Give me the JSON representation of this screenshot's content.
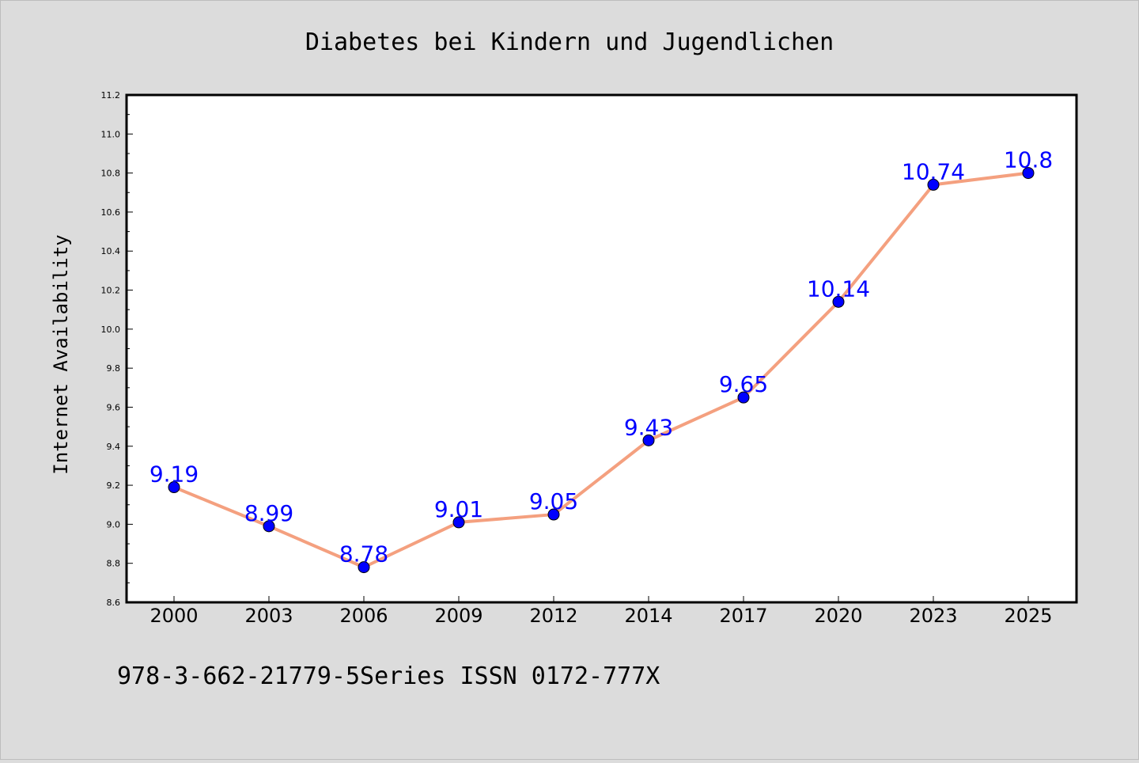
{
  "chart_data": {
    "type": "line",
    "title": "Diabetes bei Kindern und Jugendlichen",
    "xlabel": "",
    "ylabel": "Internet Availability",
    "categories": [
      "2000",
      "2003",
      "2006",
      "2009",
      "2012",
      "2014",
      "2017",
      "2020",
      "2023",
      "2025"
    ],
    "series": [
      {
        "values": [
          9.19,
          8.99,
          8.78,
          9.01,
          9.05,
          9.43,
          9.65,
          10.14,
          10.74,
          10.8
        ],
        "labels": [
          "9.19",
          "8.99",
          "8.78",
          "9.01",
          "9.05",
          "9.43",
          "9.65",
          "10.14",
          "10.74",
          "10.8"
        ],
        "line_color": "#f4a07f",
        "marker_color": "#0000ff",
        "label_color": "#0000ff"
      }
    ],
    "ylim": [
      8.6,
      11.2
    ],
    "yticks": [
      "8.6",
      "8.8",
      "9.0",
      "9.2",
      "9.4",
      "9.6",
      "9.8",
      "10.0",
      "10.2",
      "10.4",
      "10.6",
      "10.8",
      "11.0",
      "11.2"
    ],
    "grid": false,
    "legend": "none"
  },
  "footer": {
    "text": "978-3-662-21779-5Series ISSN 0172-777X"
  },
  "colors": {
    "background": "#dcdcdc",
    "plot_background": "#ffffff",
    "line": "#f4a07f",
    "marker": "#0000ff",
    "label": "#0000ff"
  }
}
